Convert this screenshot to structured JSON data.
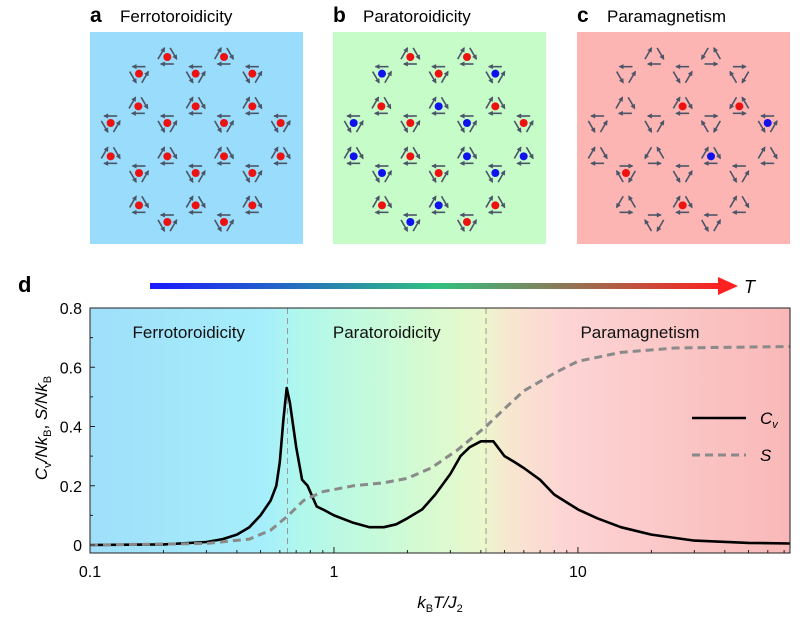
{
  "panels": [
    {
      "letter": "a",
      "title": "Ferrotoroidicity",
      "background": "#99dcfb",
      "dots": [
        "R",
        "R",
        "R",
        "R",
        "R",
        "R",
        "R",
        "R",
        "R",
        "R",
        "R",
        "R",
        "R",
        "R",
        "R",
        "R",
        "R",
        "R",
        "R",
        "R",
        "R",
        "R",
        "R",
        "R"
      ]
    },
    {
      "letter": "b",
      "title": "Paratoroidicity",
      "background": "#c6fcc8",
      "dots": [
        "R",
        "R",
        "B",
        "R",
        "B",
        "R",
        "B",
        "R",
        "B",
        "R",
        "B",
        "R",
        "B",
        "R",
        "B",
        "B",
        "B",
        "R",
        "B",
        "R",
        "B",
        "R",
        "B",
        "R"
      ]
    },
    {
      "letter": "c",
      "title": "Paramagnetism",
      "background": "#fdb5b4",
      "dots": [
        "",
        "",
        "",
        "",
        "",
        "",
        "R",
        "R",
        "",
        "",
        "",
        "B",
        "",
        "",
        "B",
        "",
        "R",
        "",
        "",
        "",
        "R",
        "",
        "",
        ""
      ]
    }
  ],
  "colors": {
    "red_dot": "#ee1111",
    "blue_dot": "#1111ee",
    "arrow": "#4a5568",
    "cv_line": "#000000",
    "s_line": "#8a8a8a"
  },
  "temperature_arrow": {
    "label": "T",
    "gradient": [
      "#1a1aff",
      "#ff2020"
    ]
  },
  "chart_data": {
    "panel_letter": "d",
    "type": "line",
    "xscale": "log",
    "xlim": [
      0.1,
      74
    ],
    "ylim": [
      0,
      0.8
    ],
    "xlabel": {
      "k": "k",
      "sub1": "B",
      "t": "T/",
      "j": "J",
      "sub2": "2"
    },
    "ylabel": "C_v/Nk_B, S/Nk_B",
    "xticks": [
      {
        "value": 0.1,
        "label": "0.1"
      },
      {
        "value": 1,
        "label": "1"
      },
      {
        "value": 10,
        "label": "10"
      }
    ],
    "yticks": [
      {
        "value": 0,
        "label": "0"
      },
      {
        "value": 0.2,
        "label": "0.2"
      },
      {
        "value": 0.4,
        "label": "0.4"
      },
      {
        "value": 0.6,
        "label": "0.6"
      },
      {
        "value": 0.8,
        "label": "0.8"
      }
    ],
    "phase_boundaries": [
      0.645,
      4.2
    ],
    "phase_labels": [
      "Ferrotoroidicity",
      "Paratoroidicity",
      "Paramagnetism"
    ],
    "legend_position": "right",
    "series": [
      {
        "name": "Cv",
        "legend_main": "C",
        "legend_sub": "v",
        "style": "solid",
        "x": [
          0.1,
          0.2,
          0.3,
          0.35,
          0.4,
          0.45,
          0.5,
          0.55,
          0.58,
          0.6,
          0.62,
          0.64,
          0.66,
          0.7,
          0.74,
          0.78,
          0.85,
          0.9,
          1.0,
          1.2,
          1.4,
          1.6,
          1.8,
          2.0,
          2.3,
          2.6,
          3.0,
          3.3,
          3.6,
          4.0,
          4.5,
          5.0,
          5.5,
          6,
          7,
          8,
          10,
          12,
          15,
          20,
          30,
          50,
          74
        ],
        "y": [
          0,
          0.002,
          0.01,
          0.02,
          0.035,
          0.06,
          0.1,
          0.15,
          0.2,
          0.28,
          0.42,
          0.53,
          0.48,
          0.33,
          0.22,
          0.2,
          0.13,
          0.12,
          0.1,
          0.075,
          0.06,
          0.06,
          0.07,
          0.09,
          0.12,
          0.17,
          0.24,
          0.3,
          0.33,
          0.35,
          0.35,
          0.3,
          0.28,
          0.26,
          0.22,
          0.17,
          0.12,
          0.09,
          0.06,
          0.035,
          0.015,
          0.007,
          0.005
        ]
      },
      {
        "name": "S",
        "legend_main": "S",
        "legend_sub": "",
        "style": "dashed",
        "x": [
          0.1,
          0.3,
          0.45,
          0.55,
          0.65,
          0.75,
          0.9,
          1.2,
          1.6,
          2.0,
          2.5,
          3.2,
          4.2,
          5,
          6,
          8,
          10,
          15,
          25,
          74
        ],
        "y": [
          0,
          0.005,
          0.02,
          0.05,
          0.1,
          0.15,
          0.18,
          0.2,
          0.21,
          0.225,
          0.26,
          0.32,
          0.4,
          0.46,
          0.52,
          0.58,
          0.62,
          0.65,
          0.665,
          0.67
        ]
      }
    ]
  }
}
